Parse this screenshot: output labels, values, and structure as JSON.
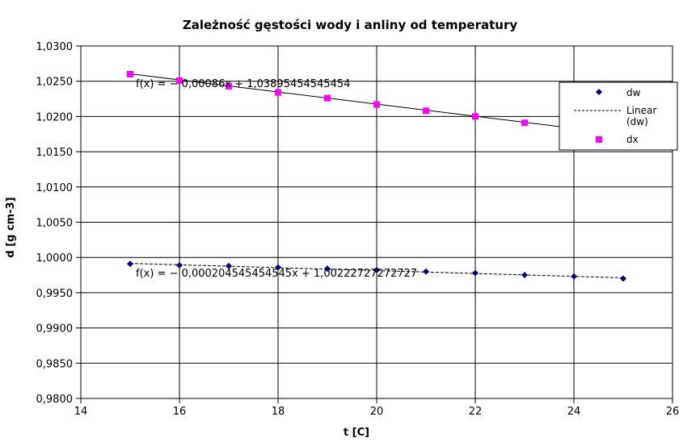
{
  "chart_data": {
    "type": "scatter",
    "title": "Zależność gęstości wody i anliny od temperatury",
    "xlabel": "t [C]",
    "ylabel": "d [g cm-3]",
    "xlim": [
      14,
      26
    ],
    "ylim": [
      0.98,
      1.03
    ],
    "x_ticks": [
      14,
      16,
      18,
      20,
      22,
      24,
      26
    ],
    "y_ticks": [
      0.98,
      0.985,
      0.99,
      0.995,
      1.0,
      1.005,
      1.01,
      1.015,
      1.02,
      1.025,
      1.03
    ],
    "x_tick_labels": [
      "14",
      "16",
      "18",
      "20",
      "22",
      "24",
      "26"
    ],
    "y_tick_labels": [
      "0,9800",
      "0,9850",
      "0,9900",
      "0,9950",
      "1,0000",
      "1,0050",
      "1,0100",
      "1,0150",
      "1,0200",
      "1,0250",
      "1,0300"
    ],
    "grid": true,
    "legend_position": "right",
    "series": [
      {
        "name": "dw",
        "marker": "diamond",
        "color": "#000080",
        "x": [
          15,
          16,
          17,
          18,
          19,
          20,
          21,
          22,
          23,
          24,
          25
        ],
        "y": [
          0.9991,
          0.9989,
          0.9988,
          0.9986,
          0.9984,
          0.9982,
          0.998,
          0.9978,
          0.9975,
          0.9973,
          0.997
        ]
      },
      {
        "name": "dx",
        "marker": "square",
        "color": "#ff00ff",
        "x": [
          15,
          16,
          17,
          18,
          19,
          20,
          21,
          22,
          23
        ],
        "y": [
          1.026,
          1.0251,
          1.0243,
          1.0234,
          1.0226,
          1.0217,
          1.0208,
          1.02,
          1.0191
        ]
      }
    ],
    "trendlines": [
      {
        "name": "Linear (dw)",
        "series": "dw",
        "style": "dashed",
        "slope": -0.000204545454545,
        "intercept": 1.00222727272727,
        "x_range": [
          15,
          25
        ],
        "equation": "f(x) = − 0,000204545454545x + 1,00222727272727"
      },
      {
        "series": "dx",
        "style": "solid",
        "slope": -0.00086,
        "intercept": 1.03895454545454,
        "x_range": [
          15,
          24.5
        ],
        "equation": "f(x) = − 0,00086x + 1,03895454545454"
      }
    ],
    "legend": [
      "dw",
      "Linear\n(dw)",
      "dx"
    ]
  }
}
